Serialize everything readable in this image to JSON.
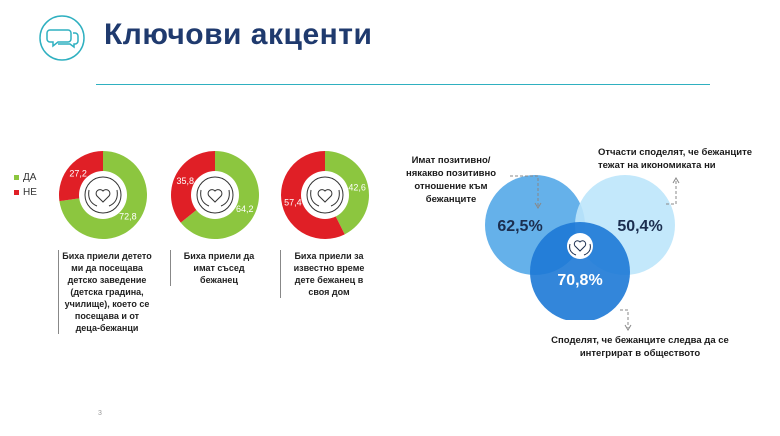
{
  "header": {
    "title": "Ключови акценти",
    "logo_icon": "chat-bubbles-icon"
  },
  "legend": {
    "yes_label": "ДА",
    "no_label": "НЕ",
    "yes_color": "#8cc63f",
    "no_color": "#e01f26"
  },
  "cards": [
    {
      "yes_value": "72,8",
      "no_value": "27,2",
      "yes_fraction": 0.728,
      "caption": "Биха приели детето ми да посещава детско заведение (детска градина, училище), което се посещава и от деца-бежанци"
    },
    {
      "yes_value": "64,2",
      "no_value": "35,8",
      "yes_fraction": 0.642,
      "caption": "Биха приели да имат съсед бежанец"
    },
    {
      "yes_value": "42,6",
      "no_value": "57,4",
      "yes_fraction": 0.426,
      "caption": "Биха приели за известно време дете бежанец в своя дом"
    }
  ],
  "venn": {
    "left_value": "62,5%",
    "right_value": "50,4%",
    "bottom_value": "70,8%",
    "left_label": "Имат позитивно/някакво позитивно отношение към бежанците",
    "right_label": "Отчасти споделят, че бежанците тежат на икономиката ни",
    "bottom_label": "Споделят, че бежанците следва да се интегрират в обществото",
    "left_color": "#4aa3e6",
    "right_color": "#bde6fb",
    "bottom_color": "#1d79d6"
  },
  "footer": {
    "page_number": "3"
  }
}
